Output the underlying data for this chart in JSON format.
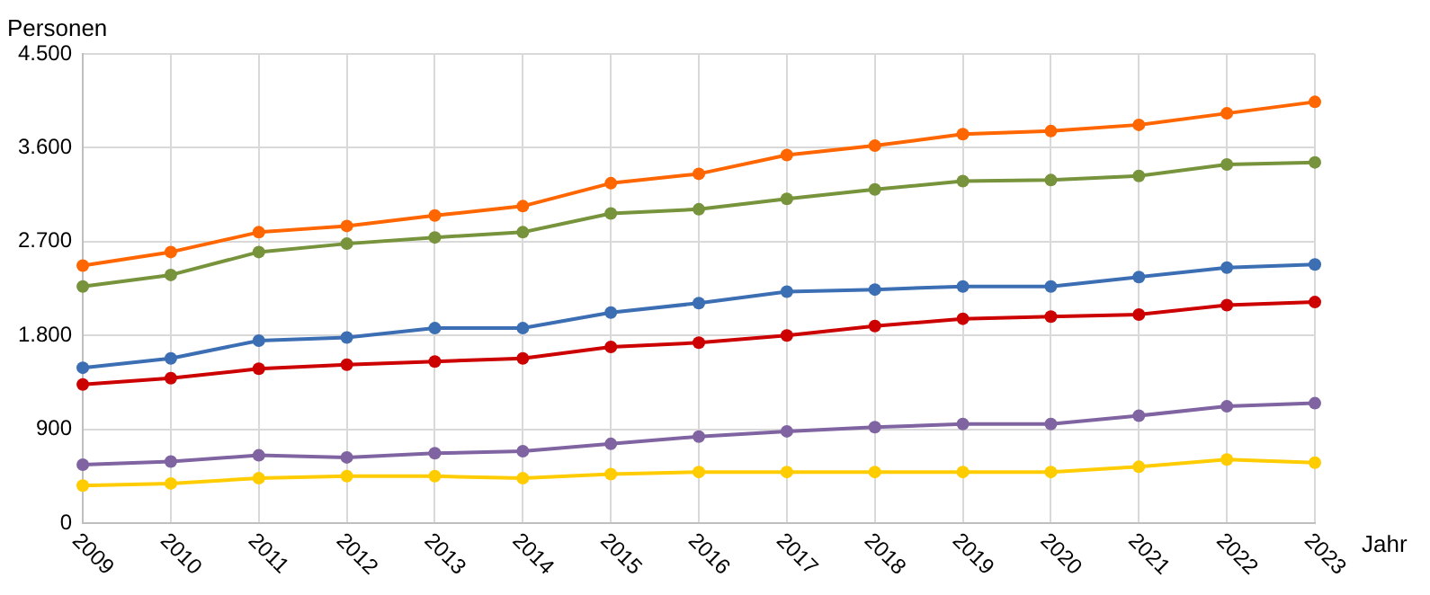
{
  "chart_data": {
    "type": "line",
    "ylabel": "Personen",
    "xlabel": "Jahr",
    "categories": [
      "2009",
      "2010",
      "2011",
      "2012",
      "2013",
      "2014",
      "2015",
      "2016",
      "2017",
      "2018",
      "2019",
      "2020",
      "2021",
      "2022",
      "2023"
    ],
    "series": [
      {
        "color": "#ff6600",
        "values": [
          2470,
          2600,
          2790,
          2850,
          2950,
          3040,
          3260,
          3350,
          3530,
          3620,
          3730,
          3760,
          3820,
          3930,
          4040
        ]
      },
      {
        "color": "#77933c",
        "values": [
          2270,
          2380,
          2600,
          2680,
          2740,
          2790,
          2970,
          3010,
          3110,
          3200,
          3280,
          3290,
          3330,
          3440,
          3460
        ]
      },
      {
        "color": "#3c6eb4",
        "values": [
          1490,
          1580,
          1750,
          1780,
          1870,
          1870,
          2020,
          2110,
          2220,
          2240,
          2270,
          2270,
          2360,
          2450,
          2480
        ]
      },
      {
        "color": "#cc0000",
        "values": [
          1330,
          1390,
          1480,
          1520,
          1550,
          1580,
          1690,
          1730,
          1800,
          1890,
          1960,
          1980,
          2000,
          2090,
          2120
        ]
      },
      {
        "color": "#8064a2",
        "values": [
          560,
          590,
          650,
          630,
          670,
          690,
          760,
          830,
          880,
          920,
          950,
          950,
          1030,
          1120,
          1150
        ]
      },
      {
        "color": "#ffcc00",
        "values": [
          360,
          380,
          430,
          450,
          450,
          430,
          470,
          490,
          490,
          490,
          490,
          490,
          540,
          610,
          580
        ]
      }
    ],
    "ylim": [
      0,
      4500
    ],
    "yticks": [
      {
        "value": 0,
        "label": "0"
      },
      {
        "value": 900,
        "label": "900"
      },
      {
        "value": 1800,
        "label": "1.800"
      },
      {
        "value": 2700,
        "label": "2.700"
      },
      {
        "value": 3600,
        "label": "3.600"
      },
      {
        "value": 4500,
        "label": "4.500"
      }
    ],
    "grid": true,
    "marker": "circle",
    "line_style": "solid",
    "legend": false
  }
}
